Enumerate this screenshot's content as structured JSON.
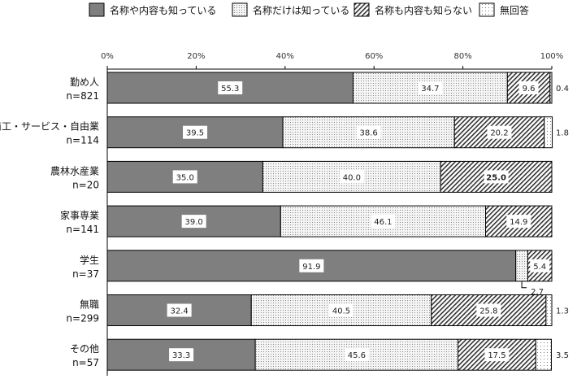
{
  "chart_data": {
    "type": "bar",
    "orientation": "horizontal",
    "stacked": true,
    "xlim": [
      0,
      100
    ],
    "x_ticks": [
      "0%",
      "20%",
      "40%",
      "60%",
      "80%",
      "100%"
    ],
    "legend_position": "top",
    "grid": false,
    "categories": [
      [
        "勤め人",
        "n=821"
      ],
      [
        "商工・サービス・自由業",
        "n=114"
      ],
      [
        "農林水産業",
        "n=20"
      ],
      [
        "家事専業",
        "n=141"
      ],
      [
        "学生",
        "n=37"
      ],
      [
        "無職",
        "n=299"
      ],
      [
        "その他",
        "n=57"
      ]
    ],
    "series": [
      {
        "name": "名称や内容も知っている",
        "pattern": "solid-gray",
        "color": "#7f7f7f",
        "values": [
          55.3,
          39.5,
          35.0,
          39.0,
          91.9,
          32.4,
          33.3
        ]
      },
      {
        "name": "名称だけは知っている",
        "pattern": "fine-dots",
        "color": "#e6e6e6",
        "values": [
          34.7,
          38.6,
          40.0,
          46.1,
          2.7,
          40.5,
          45.6
        ]
      },
      {
        "name": "名称も内容も知らない",
        "pattern": "diagonal-hatch",
        "color": "#555555",
        "values": [
          9.6,
          20.2,
          25.0,
          14.9,
          5.4,
          25.8,
          17.5
        ]
      },
      {
        "name": "無回答",
        "pattern": "sparse-dots",
        "color": "#ffffff",
        "values": [
          0.4,
          1.8,
          0.0,
          0.0,
          0.0,
          1.3,
          3.5
        ]
      }
    ],
    "data_labels": [
      [
        "55.3",
        "34.7",
        "9.6",
        "0.4"
      ],
      [
        "39.5",
        "38.6",
        "20.2",
        "1.8"
      ],
      [
        "35.0",
        "40.0",
        "25.0",
        ""
      ],
      [
        "39.0",
        "46.1",
        "14.9",
        ""
      ],
      [
        "91.9",
        "2.7",
        "5.4",
        ""
      ],
      [
        "32.4",
        "40.5",
        "25.8",
        "1.3"
      ],
      [
        "33.3",
        "45.6",
        "17.5",
        "3.5"
      ]
    ]
  }
}
